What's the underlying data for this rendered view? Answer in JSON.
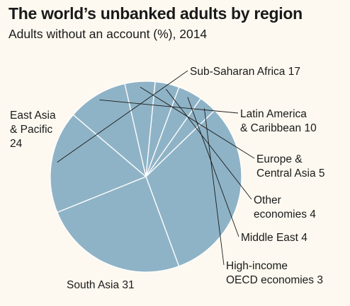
{
  "title": "The world’s unbanked adults by region",
  "subtitle": "Adults without an account (%), 2014",
  "colors": {
    "background": "#fdf9f0",
    "slice_fill": "#8fb3c6",
    "slice_stroke": "#ffffff",
    "text": "#1a1a1a"
  },
  "chart_data": {
    "type": "pie",
    "title": "The world’s unbanked adults by region",
    "subtitle": "Adults without an account (%), 2014",
    "slices": [
      {
        "lines": [
          "Sub-Saharan Africa 17"
        ],
        "value": 17
      },
      {
        "lines": [
          "Latin America",
          "& Caribbean 10"
        ],
        "value": 10
      },
      {
        "lines": [
          "Europe &",
          "Central Asia 5"
        ],
        "value": 5
      },
      {
        "lines": [
          "Other",
          "economies 4"
        ],
        "value": 4
      },
      {
        "lines": [
          "Middle East 4"
        ],
        "value": 4
      },
      {
        "lines": [
          "High-income",
          "OECD economies 3"
        ],
        "value": 3
      },
      {
        "lines": [
          "South Asia 31"
        ],
        "value": 31
      },
      {
        "lines": [
          "East Asia",
          "& Pacific",
          "24"
        ],
        "value": 24
      }
    ]
  }
}
